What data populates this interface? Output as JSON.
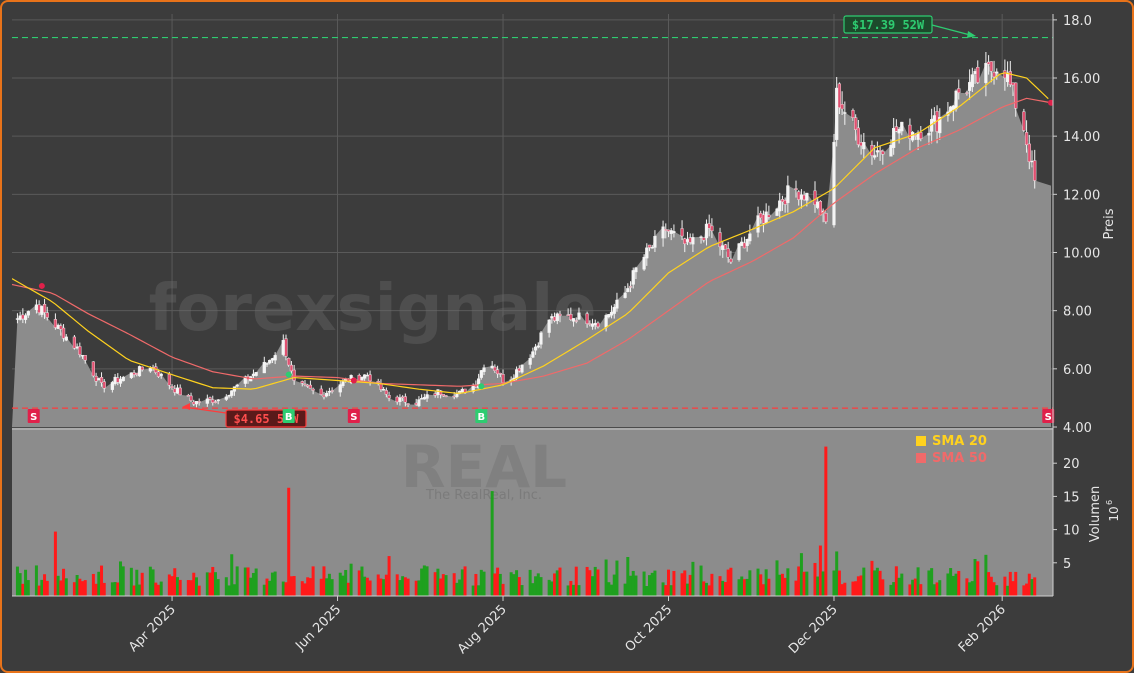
{
  "chart_data": {
    "type": "candlestick",
    "title": "",
    "watermark": "forexsignale.trade",
    "ticker": "REAL",
    "company": "The RealReal, Inc.",
    "price_axis": {
      "label": "Preis",
      "ylim": [
        4.0,
        18.2
      ],
      "ticks": [
        "4.00",
        "6.00",
        "8.00",
        "10.00",
        "12.00",
        "14.00",
        "16.00",
        "18.0"
      ]
    },
    "volume_axis": {
      "label": "Volumen",
      "unit": "10",
      "unit_exp": "6",
      "ylim": [
        0,
        25
      ],
      "ticks": [
        "5",
        "10",
        "15",
        "20"
      ]
    },
    "x_axis": {
      "range": [
        "2025-02-01",
        "2026-02-19"
      ],
      "ticks": [
        {
          "date": "2025-04-01",
          "label": "Apr 2025"
        },
        {
          "date": "2025-06-01",
          "label": "Jun 2025"
        },
        {
          "date": "2025-08-01",
          "label": "Aug 2025"
        },
        {
          "date": "2025-10-01",
          "label": "Oct 2025"
        },
        {
          "date": "2025-12-01",
          "label": "Dec 2025"
        },
        {
          "date": "2026-02-01",
          "label": "Feb 2026"
        }
      ]
    },
    "price_anchors": [
      [
        "2025-02-01",
        7.6
      ],
      [
        "2025-02-10",
        8.2
      ],
      [
        "2025-02-18",
        7.4
      ],
      [
        "2025-02-26",
        6.6
      ],
      [
        "2025-03-06",
        5.4
      ],
      [
        "2025-03-14",
        5.7
      ],
      [
        "2025-03-24",
        6.1
      ],
      [
        "2025-04-02",
        5.3
      ],
      [
        "2025-04-09",
        4.85
      ],
      [
        "2025-04-18",
        4.95
      ],
      [
        "2025-04-28",
        5.6
      ],
      [
        "2025-05-06",
        6.2
      ],
      [
        "2025-05-12",
        6.9
      ],
      [
        "2025-05-16",
        5.5
      ],
      [
        "2025-05-26",
        5.1
      ],
      [
        "2025-06-04",
        5.6
      ],
      [
        "2025-06-12",
        5.8
      ],
      [
        "2025-06-20",
        5.0
      ],
      [
        "2025-06-30",
        4.85
      ],
      [
        "2025-07-08",
        5.2
      ],
      [
        "2025-07-16",
        5.15
      ],
      [
        "2025-07-22",
        5.5
      ],
      [
        "2025-07-26",
        6.4
      ],
      [
        "2025-08-02",
        5.5
      ],
      [
        "2025-08-12",
        6.6
      ],
      [
        "2025-08-18",
        7.7
      ],
      [
        "2025-08-28",
        7.8
      ],
      [
        "2025-09-06",
        7.6
      ],
      [
        "2025-09-14",
        8.4
      ],
      [
        "2025-09-20",
        9.6
      ],
      [
        "2025-09-30",
        10.8
      ],
      [
        "2025-10-08",
        10.2
      ],
      [
        "2025-10-16",
        10.8
      ],
      [
        "2025-10-24",
        9.7
      ],
      [
        "2025-11-01",
        10.8
      ],
      [
        "2025-11-08",
        11.5
      ],
      [
        "2025-11-16",
        12.2
      ],
      [
        "2025-11-24",
        11.8
      ],
      [
        "2025-11-29",
        10.8
      ],
      [
        "2025-12-02",
        15.4
      ],
      [
        "2025-12-10",
        14.0
      ],
      [
        "2025-12-16",
        13.4
      ],
      [
        "2025-12-24",
        14.2
      ],
      [
        "2026-01-01",
        14.2
      ],
      [
        "2026-01-08",
        14.5
      ],
      [
        "2026-01-16",
        15.5
      ],
      [
        "2026-01-24",
        16.0
      ],
      [
        "2026-02-01",
        16.6
      ],
      [
        "2026-02-05",
        15.4
      ],
      [
        "2026-02-09",
        14.3
      ],
      [
        "2026-02-13",
        12.4
      ],
      [
        "2026-02-19",
        12.3
      ]
    ],
    "sma20_anchors": [
      [
        "2025-02-01",
        9.1
      ],
      [
        "2025-02-16",
        8.3
      ],
      [
        "2025-03-01",
        7.3
      ],
      [
        "2025-03-16",
        6.3
      ],
      [
        "2025-04-01",
        5.8
      ],
      [
        "2025-04-16",
        5.35
      ],
      [
        "2025-05-01",
        5.3
      ],
      [
        "2025-05-16",
        5.7
      ],
      [
        "2025-06-01",
        5.6
      ],
      [
        "2025-06-16",
        5.5
      ],
      [
        "2025-07-01",
        5.3
      ],
      [
        "2025-07-16",
        5.15
      ],
      [
        "2025-08-01",
        5.45
      ],
      [
        "2025-08-16",
        6.1
      ],
      [
        "2025-09-01",
        7.0
      ],
      [
        "2025-09-16",
        7.9
      ],
      [
        "2025-10-01",
        9.3
      ],
      [
        "2025-10-16",
        10.2
      ],
      [
        "2025-11-01",
        10.8
      ],
      [
        "2025-11-16",
        11.4
      ],
      [
        "2025-12-01",
        12.2
      ],
      [
        "2025-12-16",
        13.6
      ],
      [
        "2026-01-01",
        14.1
      ],
      [
        "2026-01-16",
        15.0
      ],
      [
        "2026-02-01",
        16.2
      ],
      [
        "2026-02-10",
        16.0
      ],
      [
        "2026-02-19",
        15.2
      ]
    ],
    "sma50_anchors": [
      [
        "2025-02-01",
        8.9
      ],
      [
        "2025-02-16",
        8.6
      ],
      [
        "2025-03-01",
        7.9
      ],
      [
        "2025-03-16",
        7.2
      ],
      [
        "2025-04-01",
        6.4
      ],
      [
        "2025-04-16",
        5.9
      ],
      [
        "2025-05-01",
        5.65
      ],
      [
        "2025-05-16",
        5.75
      ],
      [
        "2025-06-01",
        5.7
      ],
      [
        "2025-06-16",
        5.5
      ],
      [
        "2025-07-01",
        5.45
      ],
      [
        "2025-07-16",
        5.4
      ],
      [
        "2025-08-01",
        5.5
      ],
      [
        "2025-08-16",
        5.75
      ],
      [
        "2025-09-01",
        6.2
      ],
      [
        "2025-09-16",
        7.0
      ],
      [
        "2025-10-01",
        8.0
      ],
      [
        "2025-10-16",
        9.0
      ],
      [
        "2025-11-01",
        9.7
      ],
      [
        "2025-11-16",
        10.5
      ],
      [
        "2025-12-01",
        11.7
      ],
      [
        "2025-12-16",
        12.7
      ],
      [
        "2026-01-01",
        13.6
      ],
      [
        "2026-01-16",
        14.2
      ],
      [
        "2026-02-01",
        15.0
      ],
      [
        "2026-02-10",
        15.3
      ],
      [
        "2026-02-19",
        15.15
      ]
    ],
    "volume_spikes": [
      [
        "2025-02-02",
        7.7
      ],
      [
        "2025-02-17",
        9.7
      ],
      [
        "2025-03-01",
        7.9
      ],
      [
        "2025-05-14",
        16.3
      ],
      [
        "2025-07-28",
        15.8
      ],
      [
        "2025-11-28",
        22.5
      ],
      [
        "2025-11-30",
        8.0
      ],
      [
        "2025-11-26",
        7.6
      ]
    ],
    "high_line": {
      "value": 17.39,
      "label": "$17.39 52W"
    },
    "low_line": {
      "value": 4.65,
      "label": "$4.65 52W"
    },
    "signals": [
      {
        "type": "S",
        "date": "2025-02-09"
      },
      {
        "type": "B",
        "date": "2025-05-14"
      },
      {
        "type": "S",
        "date": "2025-06-07"
      },
      {
        "type": "B",
        "date": "2025-07-24"
      },
      {
        "type": "S",
        "date": "2026-02-18"
      }
    ],
    "legend": [
      {
        "name": "SMA 20",
        "color": "#ffd21e"
      },
      {
        "name": "SMA 50",
        "color": "#f06a6a"
      }
    ],
    "colors": {
      "up": "#1fa01f",
      "down": "#ff1a1a",
      "area": "#8c8c8c",
      "high": "#2ecc71",
      "low": "#ff3b3b",
      "grid": "#5a5a5a"
    }
  }
}
